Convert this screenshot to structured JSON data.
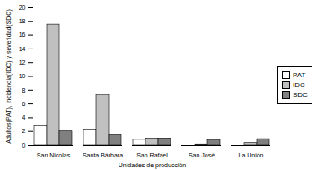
{
  "chart_data": {
    "type": "bar",
    "categories": [
      "San Nicolas",
      "Santa Bárbara",
      "San Rafael",
      "San José",
      "La Unión"
    ],
    "series": [
      {
        "name": "PAT",
        "color": "#ffffff",
        "values": [
          2.8,
          2.3,
          0.8,
          0,
          0
        ]
      },
      {
        "name": "IDC",
        "color": "#c0c0c0",
        "values": [
          17.5,
          7.3,
          1.0,
          0.1,
          0.3
        ]
      },
      {
        "name": "SDC",
        "color": "#808080",
        "values": [
          2.0,
          1.5,
          1.0,
          0.7,
          0.9
        ]
      }
    ],
    "x_label": "Unidades de producción",
    "y_label": "Adultos(PAT), incidencia(IDC) y severidad(SDC)",
    "ylim": [
      0,
      20
    ],
    "yticks": [
      0,
      2,
      4,
      6,
      8,
      10,
      12,
      14,
      16,
      18,
      20
    ],
    "grid": false,
    "legend": "right"
  }
}
